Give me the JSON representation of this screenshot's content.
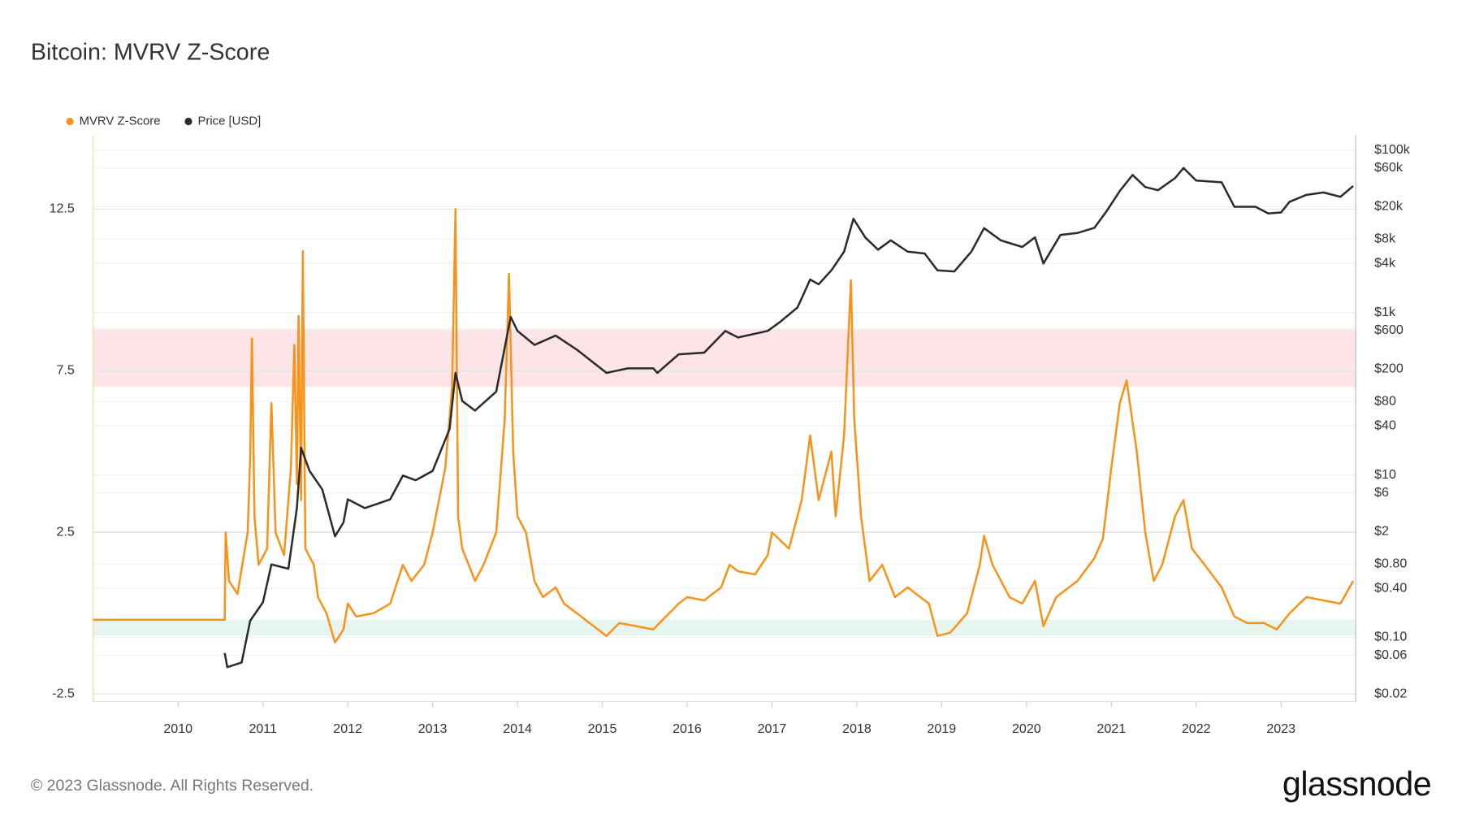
{
  "chart_data": {
    "type": "line",
    "title": "Bitcoin: MVRV Z-Score",
    "xlim": [
      2009,
      2023.88
    ],
    "xticks": [
      2010,
      2011,
      2012,
      2013,
      2014,
      2015,
      2016,
      2017,
      2018,
      2019,
      2020,
      2021,
      2022,
      2023
    ],
    "ylim": [
      -2.73,
      14.78
    ],
    "yticks": [
      -2.5,
      2.5,
      7.5,
      12.5
    ],
    "y2lim": [
      0.0162,
      151000
    ],
    "y2scale": "log",
    "y2ticks": [
      {
        "value": 0.02,
        "label": "$0.02"
      },
      {
        "value": 0.06,
        "label": "$0.06"
      },
      {
        "value": 0.1,
        "label": "$0.10"
      },
      {
        "value": 0.4,
        "label": "$0.40"
      },
      {
        "value": 0.8,
        "label": "$0.80"
      },
      {
        "value": 2,
        "label": "$2"
      },
      {
        "value": 6,
        "label": "$6"
      },
      {
        "value": 10,
        "label": "$10"
      },
      {
        "value": 40,
        "label": "$40"
      },
      {
        "value": 80,
        "label": "$80"
      },
      {
        "value": 200,
        "label": "$200"
      },
      {
        "value": 600,
        "label": "$600"
      },
      {
        "value": 1000,
        "label": "$1k"
      },
      {
        "value": 4000,
        "label": "$4k"
      },
      {
        "value": 8000,
        "label": "$8k"
      },
      {
        "value": 20000,
        "label": "$20k"
      },
      {
        "value": 60000,
        "label": "$60k"
      },
      {
        "value": 100000,
        "label": "$100k"
      }
    ],
    "grid": true,
    "legend": "top-left",
    "bands": [
      {
        "from": 7,
        "to": 8.8,
        "color": "#fde4e6"
      },
      {
        "from": -0.7,
        "to": -0.2,
        "color": "#e6f6ee"
      }
    ],
    "series": [
      {
        "name": "MVRV Z-Score",
        "color": "#f7931a",
        "x": [
          2009,
          2010.55,
          2010.56,
          2010.6,
          2010.7,
          2010.82,
          2010.85,
          2010.87,
          2010.9,
          2010.95,
          2011.05,
          2011.1,
          2011.15,
          2011.25,
          2011.33,
          2011.37,
          2011.4,
          2011.42,
          2011.45,
          2011.47,
          2011.5,
          2011.6,
          2011.65,
          2011.75,
          2011.85,
          2011.95,
          2012,
          2012.1,
          2012.3,
          2012.5,
          2012.65,
          2012.75,
          2012.9,
          2013,
          2013.15,
          2013.23,
          2013.27,
          2013.3,
          2013.35,
          2013.5,
          2013.6,
          2013.75,
          2013.85,
          2013.9,
          2013.95,
          2014,
          2014.1,
          2014.2,
          2014.3,
          2014.45,
          2014.55,
          2014.7,
          2014.85,
          2015.05,
          2015.2,
          2015.4,
          2015.6,
          2015.75,
          2015.9,
          2016,
          2016.2,
          2016.4,
          2016.5,
          2016.6,
          2016.8,
          2016.95,
          2017,
          2017.2,
          2017.35,
          2017.45,
          2017.55,
          2017.7,
          2017.75,
          2017.85,
          2017.93,
          2017.97,
          2018.05,
          2018.15,
          2018.3,
          2018.45,
          2018.6,
          2018.85,
          2018.95,
          2019.1,
          2019.3,
          2019.45,
          2019.5,
          2019.6,
          2019.8,
          2019.95,
          2020.1,
          2020.2,
          2020.35,
          2020.6,
          2020.8,
          2020.9,
          2021,
          2021.1,
          2021.18,
          2021.3,
          2021.4,
          2021.5,
          2021.6,
          2021.75,
          2021.85,
          2021.95,
          2022.1,
          2022.3,
          2022.45,
          2022.6,
          2022.8,
          2022.95,
          2023.1,
          2023.3,
          2023.5,
          2023.7,
          2023.85
        ],
        "values": [
          -0.2,
          -0.2,
          2.5,
          1.0,
          0.6,
          2.5,
          4.8,
          8.5,
          3.0,
          1.5,
          2.0,
          6.5,
          2.5,
          1.8,
          4.5,
          8.3,
          4.0,
          9.2,
          3.5,
          11.2,
          2.0,
          1.5,
          0.5,
          0.0,
          -0.9,
          -0.5,
          0.3,
          -0.1,
          0.0,
          0.3,
          1.5,
          1.0,
          1.5,
          2.5,
          4.5,
          7.0,
          12.5,
          3.0,
          2.0,
          1.0,
          1.5,
          2.5,
          6.0,
          10.5,
          5.0,
          3.0,
          2.5,
          1.0,
          0.5,
          0.8,
          0.3,
          0.0,
          -0.3,
          -0.7,
          -0.3,
          -0.4,
          -0.5,
          -0.1,
          0.3,
          0.5,
          0.4,
          0.8,
          1.5,
          1.3,
          1.2,
          1.8,
          2.5,
          2.0,
          3.5,
          5.5,
          3.5,
          5.0,
          3.0,
          5.5,
          10.3,
          6.0,
          3.0,
          1.0,
          1.5,
          0.5,
          0.8,
          0.3,
          -0.7,
          -0.6,
          0.0,
          1.5,
          2.4,
          1.5,
          0.5,
          0.3,
          1.0,
          -0.4,
          0.5,
          1.0,
          1.7,
          2.3,
          4.5,
          6.5,
          7.2,
          5.0,
          2.5,
          1.0,
          1.5,
          3.0,
          3.5,
          2.0,
          1.5,
          0.8,
          -0.1,
          -0.3,
          -0.3,
          -0.5,
          0.0,
          0.5,
          0.4,
          0.3,
          1.0
        ]
      },
      {
        "name": "Price [USD]",
        "color": "#2b2b2b",
        "axis": "y2",
        "x": [
          2010.55,
          2010.58,
          2010.75,
          2010.85,
          2011,
          2011.1,
          2011.3,
          2011.4,
          2011.45,
          2011.55,
          2011.7,
          2011.85,
          2011.95,
          2012,
          2012.2,
          2012.5,
          2012.65,
          2012.8,
          2013,
          2013.2,
          2013.27,
          2013.35,
          2013.5,
          2013.75,
          2013.92,
          2014,
          2014.2,
          2014.45,
          2014.7,
          2015.05,
          2015.3,
          2015.6,
          2015.65,
          2015.9,
          2016.2,
          2016.45,
          2016.6,
          2016.95,
          2017.1,
          2017.3,
          2017.45,
          2017.55,
          2017.7,
          2017.85,
          2017.96,
          2018.1,
          2018.25,
          2018.4,
          2018.6,
          2018.8,
          2018.95,
          2019.15,
          2019.35,
          2019.5,
          2019.7,
          2019.95,
          2020.1,
          2020.2,
          2020.4,
          2020.6,
          2020.8,
          2020.95,
          2021.1,
          2021.25,
          2021.4,
          2021.55,
          2021.75,
          2021.85,
          2022,
          2022.3,
          2022.45,
          2022.7,
          2022.85,
          2023,
          2023.1,
          2023.3,
          2023.5,
          2023.7,
          2023.85
        ],
        "values": [
          0.064,
          0.043,
          0.049,
          0.16,
          0.27,
          0.79,
          0.7,
          3.9,
          21.6,
          11.2,
          6.6,
          1.75,
          2.6,
          5,
          3.9,
          5,
          9.8,
          8.6,
          11.2,
          36.7,
          180,
          81,
          62,
          106,
          880,
          592,
          398,
          519,
          348,
          180,
          205,
          205,
          180,
          305,
          320,
          592,
          492,
          592,
          771,
          1150,
          2540,
          2220,
          3300,
          5600,
          14200,
          8360,
          5920,
          7710,
          5600,
          5320,
          3300,
          3200,
          5600,
          10900,
          7700,
          6400,
          8400,
          4000,
          9000,
          9500,
          11000,
          18000,
          31300,
          49200,
          35000,
          32000,
          45000,
          60000,
          42000,
          40000,
          20000,
          20000,
          16500,
          17000,
          23000,
          28000,
          30000,
          26500,
          36000
        ]
      }
    ]
  },
  "footer": {
    "copyright": "© 2023 Glassnode. All Rights Reserved.",
    "logo": "glassnode"
  }
}
